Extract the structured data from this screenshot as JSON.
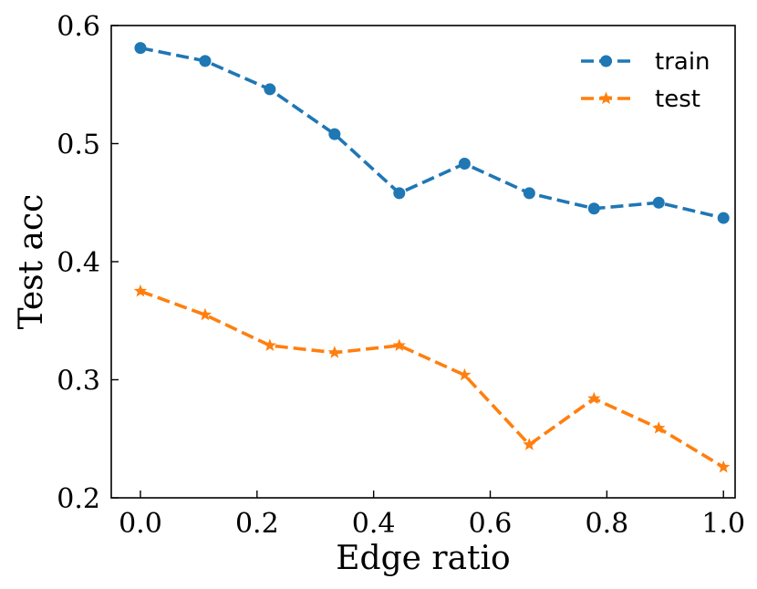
{
  "chart_data": {
    "type": "line",
    "title": "",
    "xlabel": "Edge ratio",
    "ylabel": "Test acc",
    "xlim": [
      -0.05,
      1.02
    ],
    "ylim": [
      0.2,
      0.6
    ],
    "xticks": [
      0.0,
      0.2,
      0.4,
      0.6,
      0.8,
      1.0
    ],
    "xtick_labels": [
      "0.0",
      "0.2",
      "0.4",
      "0.6",
      "0.8",
      "1.0"
    ],
    "yticks": [
      0.2,
      0.3,
      0.4,
      0.5,
      0.6
    ],
    "ytick_labels": [
      "0.2",
      "0.3",
      "0.4",
      "0.5",
      "0.6"
    ],
    "grid": false,
    "legend_position": "top-right",
    "x": [
      0.0,
      0.111,
      0.222,
      0.333,
      0.444,
      0.556,
      0.667,
      0.778,
      0.889,
      1.0
    ],
    "series": [
      {
        "name": "train",
        "color": "#1f77b4",
        "marker": "circle",
        "linestyle": "dashed",
        "values": [
          0.581,
          0.57,
          0.546,
          0.508,
          0.458,
          0.483,
          0.458,
          0.445,
          0.45,
          0.437
        ]
      },
      {
        "name": "test",
        "color": "#ff7f0e",
        "marker": "star",
        "linestyle": "dashed",
        "values": [
          0.375,
          0.355,
          0.329,
          0.323,
          0.329,
          0.304,
          0.245,
          0.284,
          0.259,
          0.226
        ]
      }
    ]
  }
}
